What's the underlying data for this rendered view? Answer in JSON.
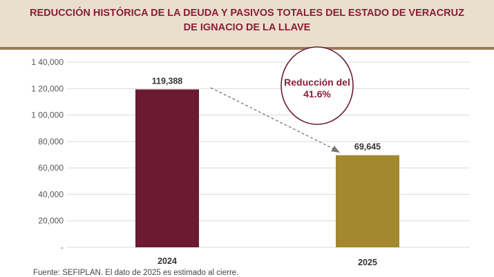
{
  "chart_data": {
    "type": "bar",
    "title": [
      "REDUCCIÓN HISTÓRICA DE LA DEUDA Y PASIVOS TOTALES DEL ESTADO DE VERACRUZ",
      "DE IGNACIO DE LA LLAVE"
    ],
    "categories": [
      "2024",
      "2025"
    ],
    "values": [
      119388,
      69645
    ],
    "data_labels": [
      "119,388",
      "69,645"
    ],
    "colors": [
      "#6b1a32",
      "#a3882f"
    ],
    "ylim": [
      0,
      140000
    ],
    "yticks": [
      0,
      20000,
      40000,
      60000,
      80000,
      100000,
      120000,
      140000
    ],
    "ytick_labels": [
      "-",
      "20,000",
      "40,000",
      "60,000",
      "80,000",
      "1 00,000",
      "1 20,000",
      "1 40,000"
    ],
    "grid": true,
    "annotation": {
      "line1": "Reducción del",
      "line2": "41.6%"
    },
    "xlabel": "",
    "ylabel": ""
  },
  "footnote": "Fuente: SEFIPLAN. El dato de 2025 es estimado al cierre."
}
